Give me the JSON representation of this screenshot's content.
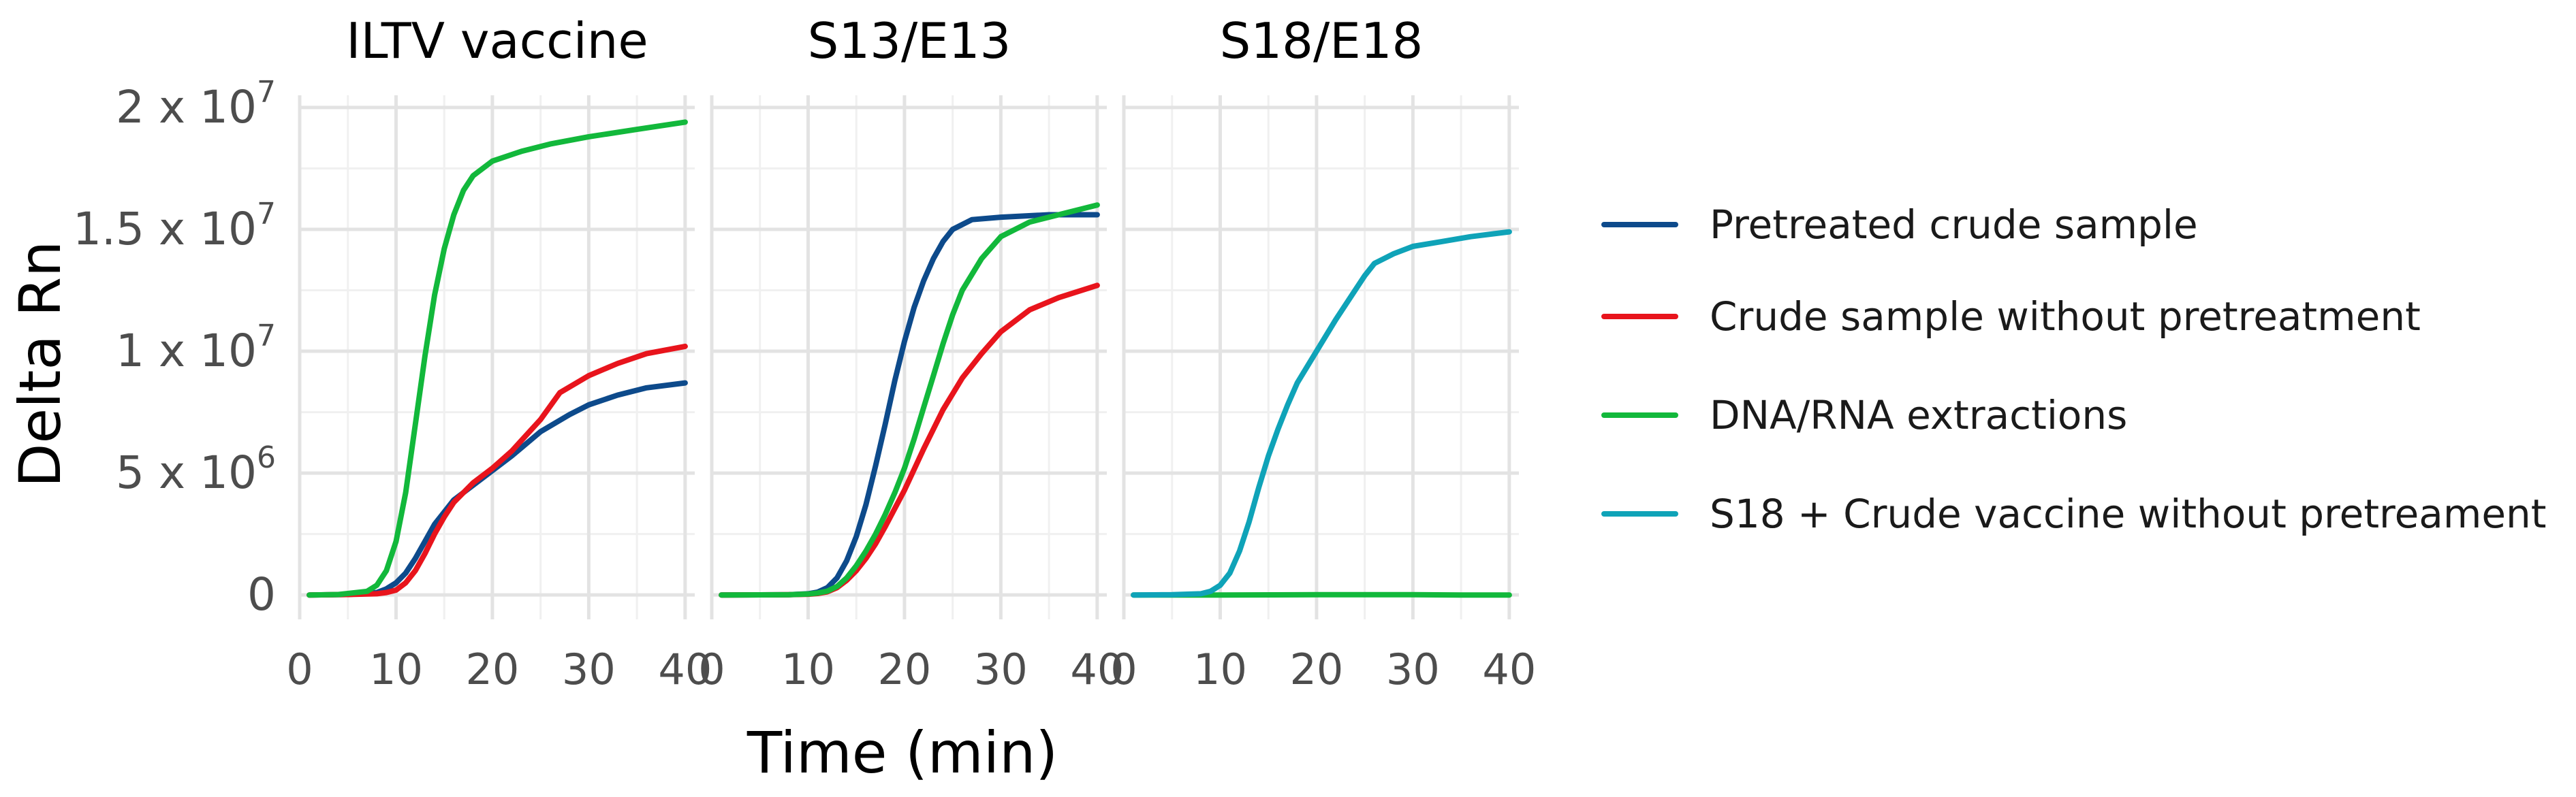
{
  "chart_data": {
    "type": "line",
    "xlabel": "Time (min)",
    "ylabel": "Delta Rn",
    "xlim": [
      0,
      41
    ],
    "ylim": [
      -1000000.0,
      20500000.0
    ],
    "x_ticks": [
      0,
      10,
      20,
      30,
      40
    ],
    "y_ticks": [
      {
        "value": 0,
        "label": "0"
      },
      {
        "value": 5000000,
        "label": "5 x 10",
        "exp": "6"
      },
      {
        "value": 10000000,
        "label": "1 x 10",
        "exp": "7"
      },
      {
        "value": 15000000,
        "label": "1.5 x 10",
        "exp": "7"
      },
      {
        "value": 20000000,
        "label": "2 x 10",
        "exp": "7"
      }
    ],
    "grid": true,
    "legend_position": "right",
    "legend": [
      {
        "key": "pretreated",
        "label": "Pretreated crude sample",
        "color": "#0d4a8b"
      },
      {
        "key": "crude",
        "label": "Crude sample without pretreatment",
        "color": "#e8141c"
      },
      {
        "key": "extraction",
        "label": "DNA/RNA extractions",
        "color": "#12b83b"
      },
      {
        "key": "s18crude",
        "label": "S18 + Crude vaccine without pretreament",
        "color": "#0fa3b8"
      }
    ],
    "panels": [
      {
        "title": "ILTV vaccine",
        "series": [
          {
            "key": "pretreated",
            "x": [
              1,
              5,
              8,
              9,
              10,
              11,
              12,
              13,
              14,
              15,
              16,
              18,
              20,
              22,
              25,
              28,
              30,
              33,
              36,
              40
            ],
            "y": [
              0,
              20000.0,
              100000.0,
              250000.0,
              500000.0,
              900000.0,
              1500000.0,
              2200000.0,
              2900000.0,
              3400000.0,
              3900000.0,
              4500000.0,
              5100000.0,
              5700000.0,
              6700000.0,
              7400000.0,
              7800000.0,
              8200000.0,
              8500000.0,
              8700000.0
            ]
          },
          {
            "key": "crude",
            "x": [
              1,
              5,
              8,
              9,
              10,
              11,
              12,
              13,
              14,
              15,
              16,
              18,
              20,
              22,
              25,
              27,
              30,
              33,
              36,
              40
            ],
            "y": [
              0,
              20000.0,
              50000.0,
              100000.0,
              200000.0,
              500000.0,
              1000000.0,
              1700000.0,
              2500000.0,
              3200000.0,
              3800000.0,
              4600000.0,
              5200000.0,
              5900000.0,
              7200000.0,
              8300000.0,
              9000000.0,
              9500000.0,
              9900000.0,
              10200000.0
            ]
          },
          {
            "key": "extraction",
            "x": [
              1,
              4,
              7,
              8,
              9,
              10,
              11,
              12,
              13,
              14,
              15,
              16,
              17,
              18,
              20,
              23,
              26,
              30,
              35,
              40
            ],
            "y": [
              0,
              20000.0,
              150000.0,
              400000.0,
              1000000.0,
              2200000.0,
              4200000.0,
              7000000.0,
              9800000.0,
              12300000.0,
              14200000.0,
              15600000.0,
              16600000.0,
              17200000.0,
              17800000.0,
              18200000.0,
              18500000.0,
              18800000.0,
              19100000.0,
              19400000.0
            ]
          }
        ]
      },
      {
        "title": "S13/E13",
        "series": [
          {
            "key": "pretreated",
            "x": [
              1,
              8,
              10,
              11,
              12,
              13,
              14,
              15,
              16,
              17,
              18,
              19,
              20,
              21,
              22,
              23,
              24,
              25,
              27,
              30,
              35,
              40
            ],
            "y": [
              0,
              10000.0,
              50000.0,
              120000.0,
              300000.0,
              700000.0,
              1400000.0,
              2400000.0,
              3700000.0,
              5300000.0,
              7000000.0,
              8800000.0,
              10400000.0,
              11800000.0,
              12900000.0,
              13800000.0,
              14500000.0,
              15000000.0,
              15400000.0,
              15500000.0,
              15600000.0,
              15600000.0
            ]
          },
          {
            "key": "crude",
            "x": [
              1,
              8,
              10,
              11,
              12,
              13,
              14,
              15,
              16,
              17,
              18,
              20,
              22,
              24,
              26,
              28,
              30,
              33,
              36,
              40
            ],
            "y": [
              0,
              10000.0,
              30000.0,
              60000.0,
              130000.0,
              300000.0,
              600000.0,
              1000000.0,
              1500000.0,
              2100000.0,
              2800000.0,
              4300000.0,
              6000000.0,
              7600000.0,
              8900000.0,
              9900000.0,
              10800000.0,
              11700000.0,
              12200000.0,
              12700000.0
            ]
          },
          {
            "key": "extraction",
            "x": [
              1,
              8,
              10,
              11,
              12,
              13,
              14,
              15,
              16,
              17,
              18,
              19,
              20,
              21,
              22,
              23,
              24,
              25,
              26,
              28,
              30,
              33,
              36,
              40
            ],
            "y": [
              0,
              10000.0,
              40000.0,
              80000.0,
              160000.0,
              350000.0,
              700000.0,
              1200000.0,
              1800000.0,
              2500000.0,
              3300000.0,
              4200000.0,
              5200000.0,
              6400000.0,
              7700000.0,
              9000000.0,
              10300000.0,
              11500000.0,
              12500000.0,
              13800000.0,
              14700000.0,
              15300000.0,
              15600000.0,
              16000000.0
            ]
          }
        ]
      },
      {
        "title": "S18/E18",
        "series": [
          {
            "key": "extraction",
            "x": [
              1,
              10,
              20,
              30,
              35,
              40
            ],
            "y": [
              0,
              0,
              10000.0,
              10000.0,
              0,
              0
            ]
          },
          {
            "key": "s18crude",
            "x": [
              1,
              5,
              8,
              9,
              10,
              11,
              12,
              13,
              14,
              15,
              16,
              17,
              18,
              20,
              22,
              24,
              25,
              26,
              28,
              30,
              33,
              36,
              40
            ],
            "y": [
              0,
              10000.0,
              50000.0,
              150000.0,
              400000.0,
              900000.0,
              1800000.0,
              3000000.0,
              4400000.0,
              5700000.0,
              6800000.0,
              7800000.0,
              8700000.0,
              10000000.0,
              11300000.0,
              12500000.0,
              13100000.0,
              13600000.0,
              14000000.0,
              14300000.0,
              14500000.0,
              14700000.0,
              14900000.0
            ]
          }
        ]
      }
    ]
  }
}
